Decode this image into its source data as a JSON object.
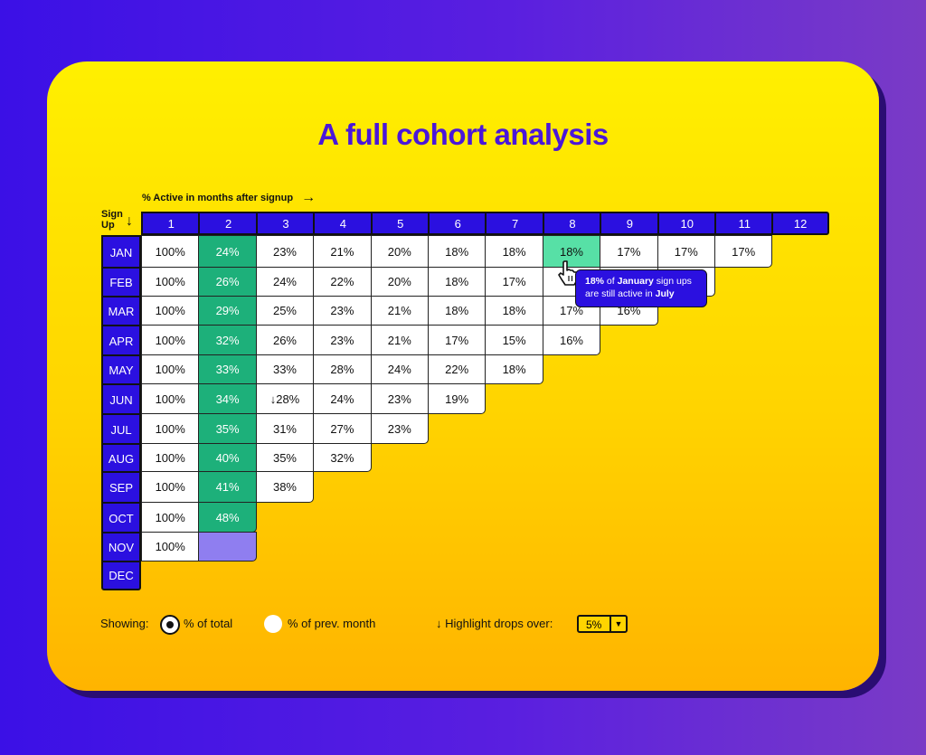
{
  "title": "A full cohort analysis",
  "axis_caption": "% Active in months after signup",
  "signup_label": "Sign Up",
  "columns": [
    "1",
    "2",
    "3",
    "4",
    "5",
    "6",
    "7",
    "8",
    "9",
    "10",
    "11",
    "12"
  ],
  "rows": [
    {
      "label": "JAN",
      "values": [
        "100%",
        "24%",
        "23%",
        "21%",
        "20%",
        "18%",
        "18%",
        "18%",
        "17%",
        "17%",
        "17%"
      ]
    },
    {
      "label": "FEB",
      "values": [
        "100%",
        "26%",
        "24%",
        "22%",
        "20%",
        "18%",
        "17%",
        "",
        "",
        ""
      ]
    },
    {
      "label": "MAR",
      "values": [
        "100%",
        "29%",
        "25%",
        "23%",
        "21%",
        "18%",
        "18%",
        "17%",
        "16%"
      ]
    },
    {
      "label": "APR",
      "values": [
        "100%",
        "32%",
        "26%",
        "23%",
        "21%",
        "17%",
        "15%",
        "16%"
      ]
    },
    {
      "label": "MAY",
      "values": [
        "100%",
        "33%",
        "33%",
        "28%",
        "24%",
        "22%",
        "18%"
      ]
    },
    {
      "label": "JUN",
      "values": [
        "100%",
        "34%",
        "↓28%",
        "24%",
        "23%",
        "19%"
      ]
    },
    {
      "label": "JUL",
      "values": [
        "100%",
        "35%",
        "31%",
        "27%",
        "23%"
      ]
    },
    {
      "label": "AUG",
      "values": [
        "100%",
        "40%",
        "35%",
        "32%"
      ]
    },
    {
      "label": "SEP",
      "values": [
        "100%",
        "41%",
        "38%"
      ]
    },
    {
      "label": "OCT",
      "values": [
        "100%",
        "48%"
      ]
    },
    {
      "label": "NOV",
      "values": [
        "100%",
        ""
      ]
    },
    {
      "label": "DEC",
      "values": []
    }
  ],
  "tooltip": {
    "value": "18%",
    "text1": " of ",
    "cohort": "January",
    "text2": " sign ups",
    "text3": "are still active in ",
    "month": "July"
  },
  "controls": {
    "showing_label": "Showing:",
    "option_total": "% of total",
    "option_prev": "% of prev. month",
    "selected": "% of total",
    "highlight_label": "↓ Highlight drops over:",
    "threshold": "5%"
  },
  "colors": {
    "header": "#2b10e0",
    "retention_highlight": "#1db07a",
    "selected_cell": "#57e0a6",
    "accent": "#4a17d9"
  },
  "icons": [
    "arrow-right-icon",
    "arrow-down-icon",
    "pointer-hand-icon",
    "sparkline-icon",
    "dropdown-caret-icon"
  ]
}
